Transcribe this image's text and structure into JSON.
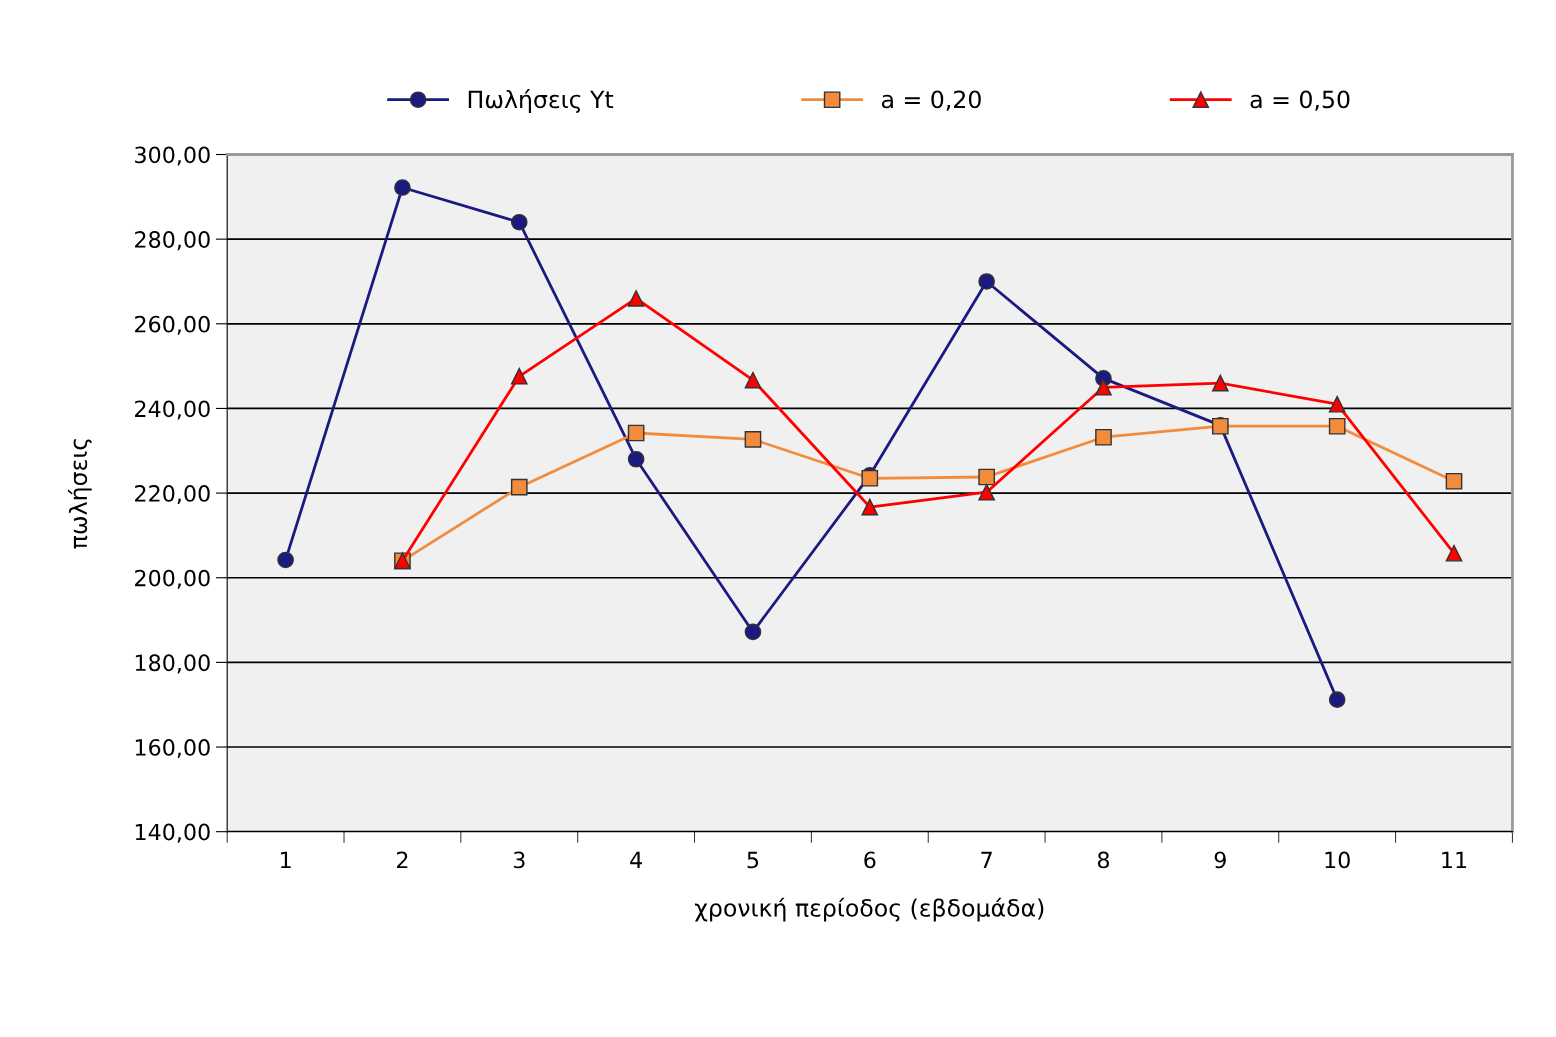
{
  "chart_data": {
    "type": "line",
    "xlabel": "χρονική περίοδος (εβδομάδα)",
    "ylabel": "πωλήσεις",
    "categories": [
      "1",
      "2",
      "3",
      "4",
      "5",
      "6",
      "7",
      "8",
      "9",
      "10",
      "11"
    ],
    "series": [
      {
        "name": "Πωλήσεις Yt",
        "color": "#1a1a80",
        "marker": "circle",
        "values": [
          204.2,
          292.2,
          284,
          228,
          187.2,
          224.2,
          270,
          247.1,
          236,
          171.2,
          null
        ]
      },
      {
        "name": "a = 0,20",
        "color": "#f28c3c",
        "marker": "square",
        "values": [
          null,
          204,
          221.4,
          234.2,
          232.7,
          223.5,
          223.8,
          233.2,
          235.8,
          235.8,
          222.8
        ]
      },
      {
        "name": "a = 0,50",
        "color": "#ff0000",
        "marker": "triangle",
        "values": [
          null,
          204,
          247.6,
          266,
          246.7,
          216.7,
          220.2,
          245,
          246,
          241,
          205.8
        ]
      }
    ],
    "ylim": [
      140,
      300
    ],
    "yticks": [
      {
        "value": 140,
        "label": "140,00"
      },
      {
        "value": 160,
        "label": "160,00"
      },
      {
        "value": 180,
        "label": "180,00"
      },
      {
        "value": 200,
        "label": "200,00"
      },
      {
        "value": 220,
        "label": "220,00"
      },
      {
        "value": 240,
        "label": "240,00"
      },
      {
        "value": 260,
        "label": "260,00"
      },
      {
        "value": 280,
        "label": "280,00"
      },
      {
        "value": 300,
        "label": "300,00"
      }
    ],
    "grid": "y",
    "legend": "top"
  }
}
